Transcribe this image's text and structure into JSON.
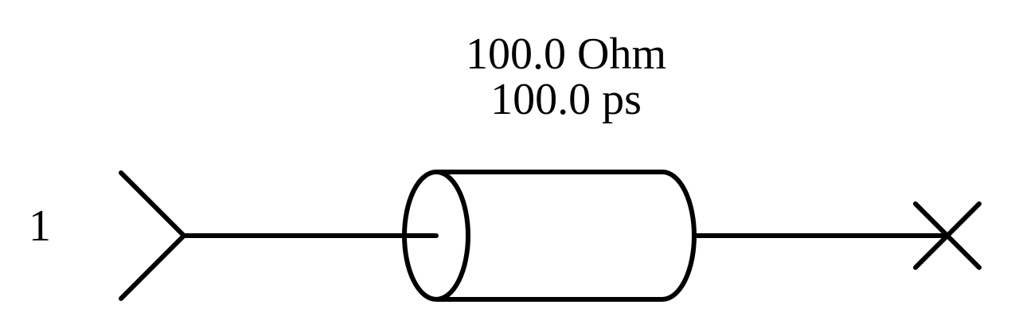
{
  "transmission_line": {
    "impedance": "100.0 Ohm",
    "delay": "100.0 ps"
  },
  "port": {
    "label": "1"
  },
  "colors": {
    "stroke": "#000000",
    "background": "#ffffff"
  },
  "icons": {
    "input": "port-input-icon",
    "line": "transmission-line-cylinder-icon",
    "termination": "open-termination-x-icon"
  }
}
